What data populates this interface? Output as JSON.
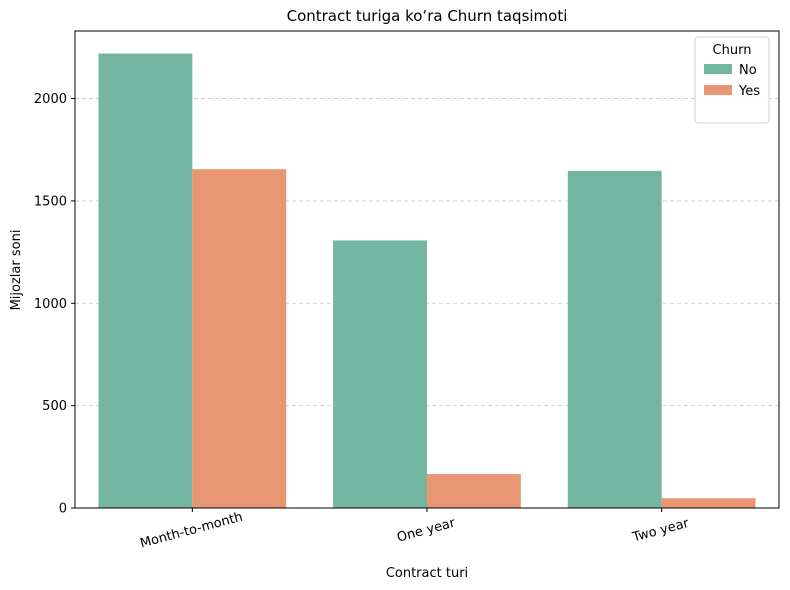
{
  "chart_data": {
    "type": "bar",
    "title": "Contract turiga koʻra Churn taqsimoti",
    "xlabel": "Contract turi",
    "ylabel": "Mijozlar soni",
    "categories": [
      "Month-to-month",
      "One year",
      "Two year"
    ],
    "series": [
      {
        "name": "No",
        "color": "#72b6a1",
        "values": [
          2220,
          1307,
          1647
        ]
      },
      {
        "name": "Yes",
        "color": "#e99675",
        "values": [
          1655,
          166,
          48
        ]
      }
    ],
    "ylim": [
      0,
      2330
    ],
    "yticks": [
      0,
      500,
      1000,
      1500,
      2000
    ],
    "grid": "y-dashed",
    "legend": {
      "title": "Churn",
      "placement": "top-right"
    }
  }
}
